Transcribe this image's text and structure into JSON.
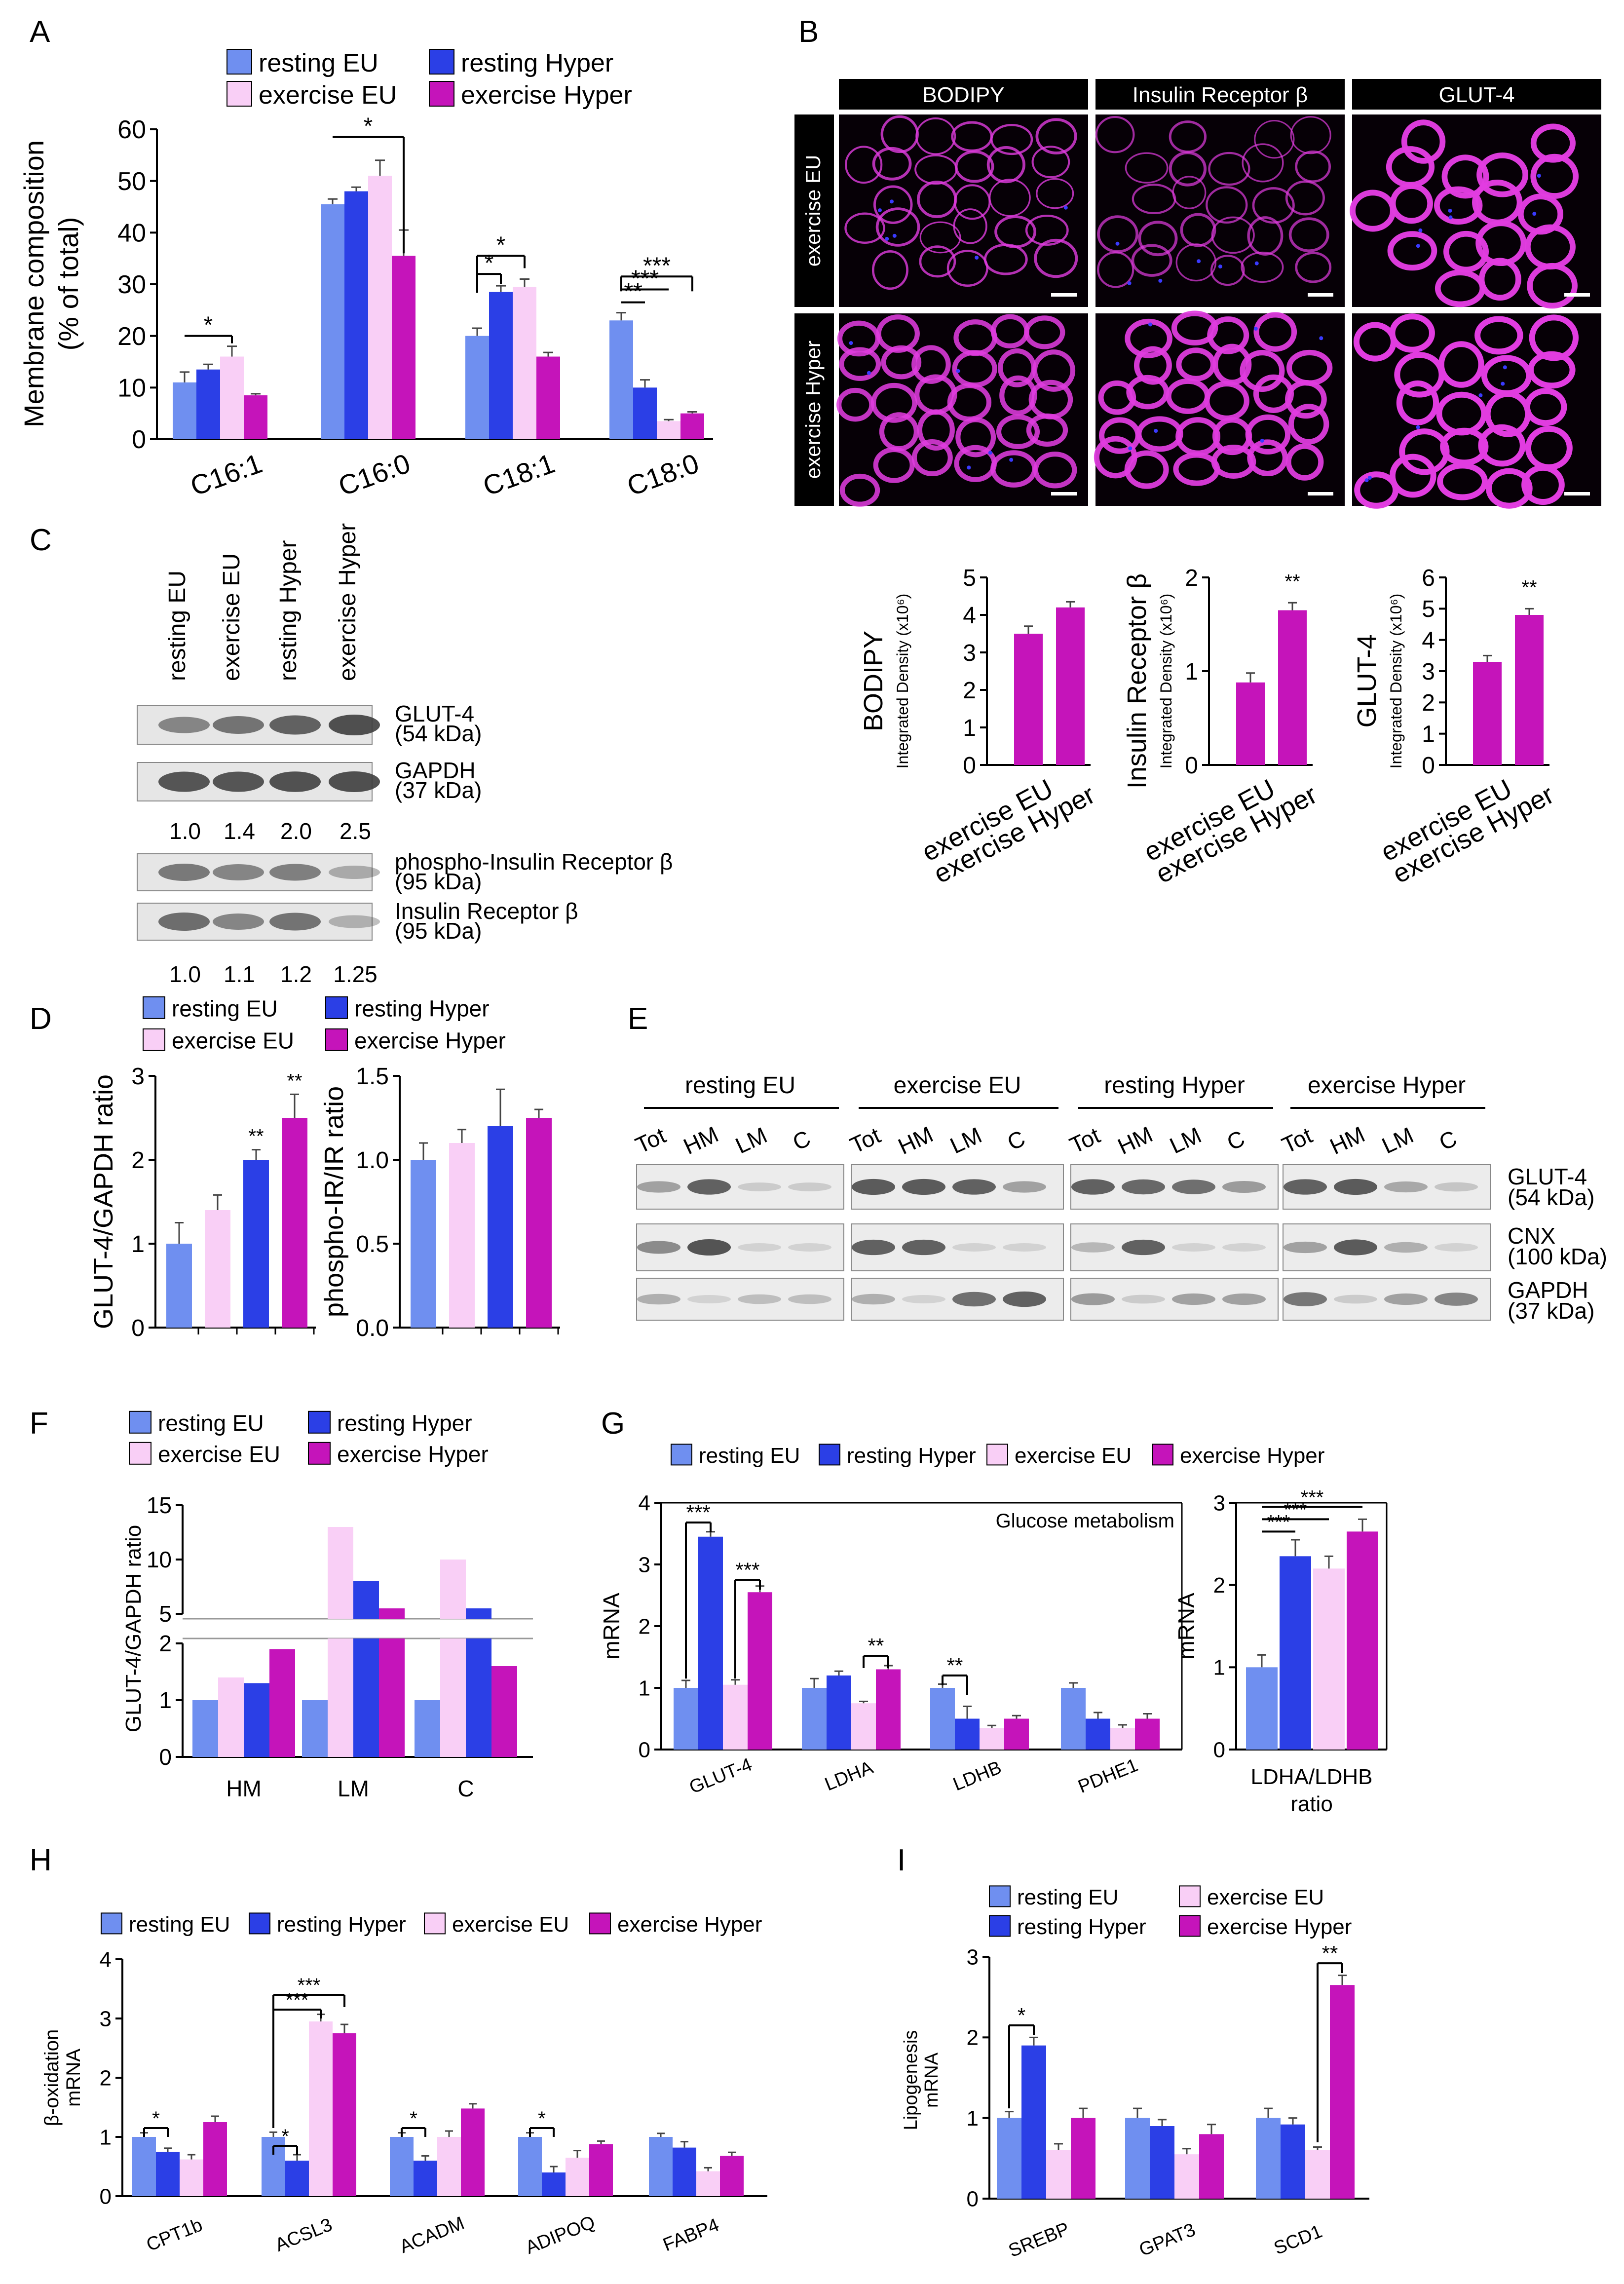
{
  "colors": {
    "resting_eu": "#6f8ff0",
    "resting_hyper": "#2b3fe6",
    "exercise_eu": "#f9cff6",
    "exercise_hyper": "#c514ba",
    "axis": "#000000",
    "micro_bg": "#060006",
    "micro_stain": "#e13ce0",
    "micro_nuclei": "#3a3aff",
    "blot_band": "#3a3a3a"
  },
  "legend_labels": {
    "resting_eu": "resting EU",
    "resting_hyper": "resting Hyper",
    "exercise_eu": "exercise EU",
    "exercise_hyper": "exercise Hyper"
  },
  "panel_letters": [
    "A",
    "B",
    "C",
    "D",
    "E",
    "F",
    "G",
    "H",
    "I"
  ],
  "chart_data": [
    {
      "id": "A",
      "type": "bar",
      "ylabel": "Membrane composition (% of total)",
      "ylabel_lines": [
        "Membrane composition",
        "(% of total)"
      ],
      "ylim": [
        0,
        60
      ],
      "yticks": [
        0,
        10,
        20,
        30,
        40,
        50,
        60
      ],
      "categories": [
        "C16:1",
        "C16:0",
        "C18:1",
        "C18:0"
      ],
      "series": [
        {
          "name": "resting EU",
          "values": [
            11,
            45.5,
            20,
            23
          ]
        },
        {
          "name": "resting Hyper",
          "values": [
            13.5,
            48,
            28.5,
            10
          ]
        },
        {
          "name": "exercise EU",
          "values": [
            16,
            51,
            29.5,
            3.5
          ]
        },
        {
          "name": "exercise Hyper",
          "values": [
            8.5,
            35.5,
            16,
            5
          ]
        }
      ],
      "errors": [
        [
          2,
          1,
          1.5,
          1.5
        ],
        [
          1,
          0.8,
          1.2,
          1.5
        ],
        [
          2,
          3,
          1.5,
          0.3
        ],
        [
          0.3,
          5,
          0.8,
          0.3
        ]
      ],
      "significance": [
        "*",
        "*",
        "*",
        "*",
        "***",
        "***",
        "**"
      ]
    },
    {
      "id": "B-BODIPY",
      "type": "bar",
      "ylabel": "BODIPY",
      "ylabel_sub": "Integrated Density (x10⁶)",
      "ylim": [
        0,
        5
      ],
      "yticks": [
        0,
        1,
        2,
        3,
        4,
        5
      ],
      "categories": [
        "exercise EU",
        "exercise Hyper"
      ],
      "values": [
        3.5,
        4.2
      ],
      "errors": [
        0.2,
        0.15
      ]
    },
    {
      "id": "B-IR",
      "type": "bar",
      "ylabel": "Insulin Receptor β",
      "ylabel_sub": "Integrated Density (x10⁶)",
      "ylim": [
        0,
        2
      ],
      "yticks": [
        0,
        1,
        2
      ],
      "categories": [
        "exercise EU",
        "exercise Hyper"
      ],
      "values": [
        0.88,
        1.65
      ],
      "errors": [
        0.1,
        0.08
      ],
      "significance": [
        "**"
      ]
    },
    {
      "id": "B-GLUT4",
      "type": "bar",
      "ylabel": "GLUT-4",
      "ylabel_sub": "Integrated Density (x10⁶)",
      "ylim": [
        0,
        6
      ],
      "yticks": [
        0,
        1,
        2,
        3,
        4,
        5,
        6
      ],
      "categories": [
        "exercise EU",
        "exercise Hyper"
      ],
      "values": [
        3.3,
        4.8
      ],
      "errors": [
        0.2,
        0.2
      ],
      "significance": [
        "**"
      ]
    },
    {
      "id": "D-GLUT4",
      "type": "bar",
      "ylabel": "GLUT-4/GAPDH ratio",
      "ylim": [
        0,
        3
      ],
      "yticks": [
        0,
        1,
        2,
        3
      ],
      "series": [
        {
          "name": "resting EU",
          "values": [
            1.0
          ]
        },
        {
          "name": "exercise EU",
          "values": [
            1.4
          ]
        },
        {
          "name": "resting Hyper",
          "values": [
            2.0
          ]
        },
        {
          "name": "exercise Hyper",
          "values": [
            2.5
          ]
        }
      ],
      "errors": [
        0.25,
        0.18,
        0.12,
        0.28
      ],
      "significance": [
        "**",
        "**"
      ]
    },
    {
      "id": "D-IR",
      "type": "bar",
      "ylabel": "phospho-IR/IR ratio",
      "ylim": [
        0,
        1.5
      ],
      "yticks": [
        "0.0",
        "0.5",
        "1.0",
        "1.5"
      ],
      "series": [
        {
          "name": "resting EU",
          "values": [
            1.0
          ]
        },
        {
          "name": "exercise EU",
          "values": [
            1.1
          ]
        },
        {
          "name": "resting Hyper",
          "values": [
            1.2
          ]
        },
        {
          "name": "exercise Hyper",
          "values": [
            1.25
          ]
        }
      ],
      "errors": [
        0.1,
        0.08,
        0.22,
        0.05
      ]
    },
    {
      "id": "F",
      "type": "bar",
      "ylabel": "GLUT-4/GAPDH ratio",
      "broken_axis": true,
      "ylim_lower": [
        0,
        2
      ],
      "ylim_upper": [
        5,
        15
      ],
      "yticks_lower": [
        0,
        1,
        2
      ],
      "yticks_upper": [
        5,
        10,
        15
      ],
      "categories": [
        "HM",
        "LM",
        "C"
      ],
      "series": [
        {
          "name": "resting EU",
          "values": [
            1,
            1,
            1
          ]
        },
        {
          "name": "exercise EU",
          "values": [
            1.4,
            13,
            10
          ]
        },
        {
          "name": "resting Hyper",
          "values": [
            1.3,
            8,
            5.5
          ]
        },
        {
          "name": "exercise Hyper",
          "values": [
            1.9,
            5.5,
            1.6
          ]
        }
      ]
    },
    {
      "id": "G-main",
      "type": "bar",
      "title": "Glucose metabolism",
      "ylabel": "mRNA",
      "ylim": [
        0,
        4
      ],
      "yticks": [
        0,
        1,
        2,
        3,
        4
      ],
      "categories": [
        "GLUT-4",
        "LDHA",
        "LDHB",
        "PDHE1"
      ],
      "series": [
        {
          "name": "resting EU",
          "values": [
            1.0,
            1.0,
            1.0,
            1.0
          ]
        },
        {
          "name": "resting Hyper",
          "values": [
            3.45,
            1.2,
            0.5,
            0.5
          ]
        },
        {
          "name": "exercise EU",
          "values": [
            1.05,
            0.75,
            0.35,
            0.35
          ]
        },
        {
          "name": "exercise Hyper",
          "values": [
            2.55,
            1.3,
            0.5,
            0.5
          ]
        }
      ],
      "errors": [
        [
          0.12,
          0.15,
          0.06,
          0.08
        ],
        [
          0.08,
          0.07,
          0.2,
          0.1
        ],
        [
          0.08,
          0.03,
          0.04,
          0.05
        ],
        [
          0.1,
          0.06,
          0.05,
          0.08
        ]
      ],
      "significance": [
        "***",
        "***",
        "**",
        "**"
      ]
    },
    {
      "id": "G-ratio",
      "type": "bar",
      "ylabel": "mRNA",
      "xlabel_lines": [
        "LDHA/LDHB",
        "ratio"
      ],
      "ylim": [
        0,
        3
      ],
      "yticks": [
        0,
        1,
        2,
        3
      ],
      "series": [
        {
          "name": "resting EU",
          "values": [
            1.0
          ]
        },
        {
          "name": "resting Hyper",
          "values": [
            2.35
          ]
        },
        {
          "name": "exercise EU",
          "values": [
            2.2
          ]
        },
        {
          "name": "exercise Hyper",
          "values": [
            2.65
          ]
        }
      ],
      "errors": [
        0.15,
        0.2,
        0.15,
        0.15
      ],
      "significance": [
        "***",
        "***",
        "***"
      ]
    },
    {
      "id": "H",
      "type": "bar",
      "ylabel": "β-oxidation mRNA",
      "ylabel_lines": [
        "β-oxidation",
        "mRNA"
      ],
      "ylim": [
        0,
        4
      ],
      "yticks": [
        0,
        1,
        2,
        3,
        4
      ],
      "categories": [
        "CPT1b",
        "ACSL3",
        "ACADM",
        "ADIPOQ",
        "FABP4"
      ],
      "series": [
        {
          "name": "resting EU",
          "values": [
            1.0,
            1.0,
            1.0,
            1.0,
            1.0
          ]
        },
        {
          "name": "resting Hyper",
          "values": [
            0.75,
            0.6,
            0.6,
            0.4,
            0.82
          ]
        },
        {
          "name": "exercise EU",
          "values": [
            0.62,
            2.95,
            1.0,
            0.65,
            0.42
          ]
        },
        {
          "name": "exercise Hyper",
          "values": [
            1.25,
            2.75,
            1.48,
            0.88,
            0.68
          ]
        }
      ],
      "errors": [
        [
          0.07,
          0.08,
          0.07,
          0.07,
          0.06
        ],
        [
          0.06,
          0.1,
          0.08,
          0.1,
          0.1
        ],
        [
          0.08,
          0.12,
          0.1,
          0.12,
          0.06
        ],
        [
          0.1,
          0.15,
          0.08,
          0.05,
          0.06
        ]
      ],
      "significance": [
        "*",
        "*",
        "***",
        "***",
        "*",
        "*"
      ]
    },
    {
      "id": "I",
      "type": "bar",
      "ylabel": "Lipogenesis mRNA",
      "ylabel_lines": [
        "Lipogenesis",
        "mRNA"
      ],
      "ylim": [
        0,
        3
      ],
      "yticks": [
        0,
        1,
        2,
        3
      ],
      "categories": [
        "SREBP",
        "GPAT3",
        "SCD1"
      ],
      "series": [
        {
          "name": "resting EU",
          "values": [
            1.0,
            1.0,
            1.0
          ]
        },
        {
          "name": "resting Hyper",
          "values": [
            1.9,
            0.9,
            0.92
          ]
        },
        {
          "name": "exercise EU",
          "values": [
            0.6,
            0.55,
            0.6
          ]
        },
        {
          "name": "exercise Hyper",
          "values": [
            1.0,
            0.8,
            2.65
          ]
        }
      ],
      "errors": [
        [
          0.08,
          0.12,
          0.12
        ],
        [
          0.1,
          0.08,
          0.08
        ],
        [
          0.08,
          0.07,
          0.04
        ],
        [
          0.12,
          0.12,
          0.12
        ]
      ],
      "significance": [
        "*",
        "**"
      ]
    }
  ],
  "panelB": {
    "headers": [
      "BODIPY",
      "Insulin Receptor β",
      "GLUT-4"
    ],
    "rows": [
      "exercise EU",
      "exercise Hyper"
    ]
  },
  "panelC": {
    "lanes": [
      "resting EU",
      "exercise EU",
      "resting Hyper",
      "exercise Hyper"
    ],
    "blots": [
      {
        "name": "GLUT-4",
        "kda": "(54 kDa)"
      },
      {
        "name": "GAPDH",
        "kda": "(37 kDa)"
      },
      {
        "name": "phospho-Insulin Receptor β",
        "kda": "(95 kDa)"
      },
      {
        "name": "Insulin Receptor β",
        "kda": "(95 kDa)"
      }
    ],
    "ratios1": [
      "1.0",
      "1.4",
      "2.0",
      "2.5"
    ],
    "ratios2": [
      "1.0",
      "1.1",
      "1.2",
      "1.25"
    ]
  },
  "panelE": {
    "groups": [
      "resting EU",
      "exercise EU",
      "resting Hyper",
      "exercise Hyper"
    ],
    "fractions": [
      "Tot",
      "HM",
      "LM",
      "C"
    ],
    "blots": [
      {
        "name": "GLUT-4",
        "kda": "(54 kDa)"
      },
      {
        "name": "CNX",
        "kda": "(100 kDa)"
      },
      {
        "name": "GAPDH",
        "kda": "(37 kDa)"
      }
    ]
  }
}
